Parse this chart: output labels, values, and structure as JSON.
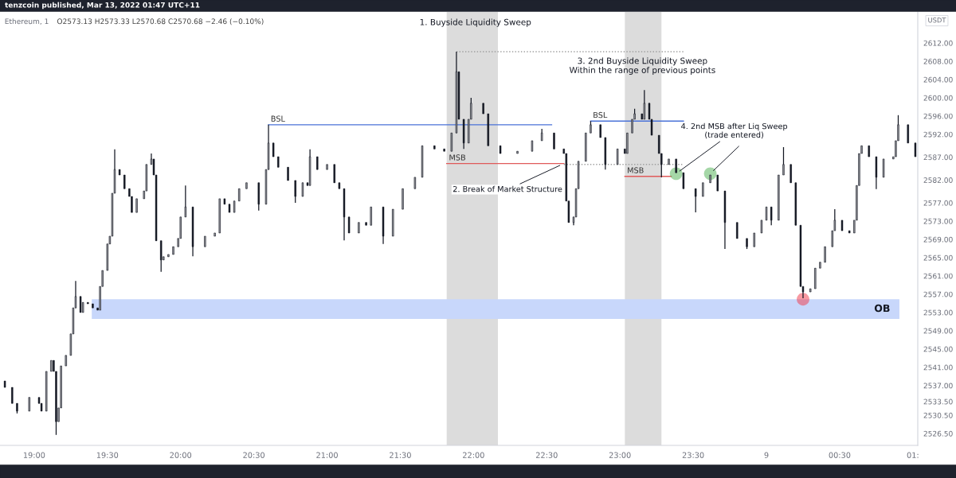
{
  "chart_data": {
    "type": "candlestick",
    "title": "Ethereum, 1",
    "subtitle": "O2573.13 H2573.33 L2570.68 C2570.68 −2.46 (−0.10%)",
    "annotations": [
      "tenzcoin published, Mar 13, 2022 01:47 UTC+11",
      "USDT",
      "1. Buyside Liquidity Sweep",
      {
        "text": "2. Break of Market Structure",
        "x": "2022-03-08T22:37",
        "y": 2585.6
      },
      "3. 2nd Buyside Liquidity Sweep\nWithin the range of previous points",
      {
        "text": "4. 2nd MSB after Liq Sweep\n(trade entered)",
        "x": "2022-03-08T23:23",
        "y": 2583.4
      }
    ],
    "x": [
      "2022-03-08T18:48",
      "2022-03-08T18:51",
      "2022-03-08T18:53",
      "2022-03-08T18:58",
      "2022-03-08T19:02",
      "2022-03-08T19:03",
      "2022-03-08T19:05",
      "2022-03-08T19:07",
      "2022-03-08T19:08",
      "2022-03-08T19:09",
      "2022-03-08T19:10",
      "2022-03-08T19:11",
      "2022-03-08T19:13",
      "2022-03-08T19:15",
      "2022-03-08T19:16",
      "2022-03-08T19:17",
      "2022-03-08T19:19",
      "2022-03-08T19:20",
      "2022-03-08T19:22",
      "2022-03-08T19:24",
      "2022-03-08T19:26",
      "2022-03-08T19:27",
      "2022-03-08T19:28",
      "2022-03-08T19:30",
      "2022-03-08T19:31",
      "2022-03-08T19:32",
      "2022-03-08T19:33",
      "2022-03-08T19:35",
      "2022-03-08T19:37",
      "2022-03-08T19:39",
      "2022-03-08T19:40",
      "2022-03-08T19:42",
      "2022-03-08T19:45",
      "2022-03-08T19:46",
      "2022-03-08T19:48",
      "2022-03-08T19:49",
      "2022-03-08T19:50",
      "2022-03-08T19:52",
      "2022-03-08T19:53",
      "2022-03-08T19:55",
      "2022-03-08T19:57",
      "2022-03-08T19:59",
      "2022-03-08T20:00",
      "2022-03-08T20:02",
      "2022-03-08T20:05",
      "2022-03-08T20:10",
      "2022-03-08T20:14",
      "2022-03-08T20:16",
      "2022-03-08T20:18",
      "2022-03-08T20:20",
      "2022-03-08T20:22",
      "2022-03-08T20:24",
      "2022-03-08T20:27",
      "2022-03-08T20:32",
      "2022-03-08T20:35",
      "2022-03-08T20:36",
      "2022-03-08T20:38",
      "2022-03-08T20:40",
      "2022-03-08T20:44",
      "2022-03-08T20:47",
      "2022-03-08T20:50",
      "2022-03-08T20:52",
      "2022-03-08T20:53",
      "2022-03-08T20:56",
      "2022-03-08T21:00",
      "2022-03-08T21:03",
      "2022-03-08T21:05",
      "2022-03-08T21:07",
      "2022-03-08T21:09",
      "2022-03-08T21:13",
      "2022-03-08T21:16",
      "2022-03-08T21:18",
      "2022-03-08T21:23",
      "2022-03-08T21:27",
      "2022-03-08T21:31",
      "2022-03-08T21:36",
      "2022-03-08T21:39",
      "2022-03-08T21:44",
      "2022-03-08T21:48",
      "2022-03-08T21:51",
      "2022-03-08T21:53",
      "2022-03-08T21:54",
      "2022-03-08T21:56",
      "2022-03-08T21:58",
      "2022-03-08T21:59",
      "2022-03-08T22:04",
      "2022-03-08T22:06",
      "2022-03-08T22:11",
      "2022-03-08T22:18",
      "2022-03-08T22:24",
      "2022-03-08T22:28",
      "2022-03-08T22:33",
      "2022-03-08T22:37",
      "2022-03-08T22:38",
      "2022-03-08T22:39",
      "2022-03-08T22:41",
      "2022-03-08T22:42",
      "2022-03-08T22:43",
      "2022-03-08T22:46",
      "2022-03-08T22:48",
      "2022-03-08T22:52",
      "2022-03-08T22:54",
      "2022-03-08T22:59",
      "2022-03-08T23:02",
      "2022-03-08T23:03",
      "2022-03-08T23:05",
      "2022-03-08T23:06",
      "2022-03-08T23:09",
      "2022-03-08T23:10",
      "2022-03-08T23:12",
      "2022-03-08T23:13",
      "2022-03-08T23:16",
      "2022-03-08T23:17",
      "2022-03-08T23:20",
      "2022-03-08T23:23",
      "2022-03-08T23:26",
      "2022-03-08T23:31",
      "2022-03-08T23:34",
      "2022-03-08T23:37",
      "2022-03-08T23:40",
      "2022-03-08T23:43",
      "2022-03-08T23:48",
      "2022-03-08T23:52",
      "2022-03-08T23:55",
      "2022-03-08T23:58",
      "2022-03-09T00:00",
      "2022-03-09T00:02",
      "2022-03-09T00:05",
      "2022-03-09T00:07",
      "2022-03-09T00:10",
      "2022-03-09T00:12",
      "2022-03-09T00:14",
      "2022-03-09T00:15",
      "2022-03-09T00:18",
      "2022-03-09T00:20",
      "2022-03-09T00:22",
      "2022-03-09T00:24",
      "2022-03-09T00:27",
      "2022-03-09T00:28",
      "2022-03-09T00:31",
      "2022-03-09T00:34",
      "2022-03-09T00:36",
      "2022-03-09T00:37",
      "2022-03-09T00:38",
      "2022-03-09T00:39",
      "2022-03-09T00:42",
      "2022-03-09T00:45",
      "2022-03-09T00:48",
      "2022-03-09T00:52",
      "2022-03-09T00:53",
      "2022-03-09T00:54",
      "2022-03-09T00:58",
      "2022-03-09T01:01"
    ],
    "ohlc": [
      [
        2538.0,
        2538.0,
        2536.6,
        2536.6
      ],
      [
        2536.6,
        2536.6,
        2533.1,
        2533.1
      ],
      [
        2533.1,
        2533.1,
        2530.9,
        2531.4
      ],
      [
        2531.4,
        2534.4,
        2531.4,
        2534.4
      ],
      [
        2534.4,
        2534.4,
        2533.1,
        2533.1
      ],
      [
        2533.1,
        2533.1,
        2531.4,
        2531.4
      ],
      [
        2531.4,
        2540.1,
        2531.4,
        2540.1
      ],
      [
        2540.1,
        2542.5,
        2540.1,
        2542.5
      ],
      [
        2542.5,
        2542.5,
        2540.1,
        2540.1
      ],
      [
        2540.1,
        2540.1,
        2526.2,
        2529.1
      ],
      [
        2529.1,
        2532.1,
        2529.1,
        2532.1
      ],
      [
        2532.1,
        2541.3,
        2532.1,
        2541.3
      ],
      [
        2541.3,
        2543.6,
        2541.3,
        2543.6
      ],
      [
        2543.6,
        2548.3,
        2543.6,
        2548.3
      ],
      [
        2548.3,
        2554.0,
        2548.3,
        2554.0
      ],
      [
        2554.0,
        2559.9,
        2554.0,
        2556.5
      ],
      [
        2556.5,
        2556.5,
        2553.0,
        2553.0
      ],
      [
        2553.0,
        2555.2,
        2553.0,
        2555.2
      ],
      [
        2555.2,
        2555.2,
        2554.9,
        2554.9
      ],
      [
        2554.9,
        2554.9,
        2554.0,
        2554.0
      ],
      [
        2554.0,
        2554.0,
        2553.5,
        2553.5
      ],
      [
        2553.5,
        2558.7,
        2553.5,
        2558.7
      ],
      [
        2558.7,
        2562.2,
        2558.7,
        2562.2
      ],
      [
        2562.2,
        2568.0,
        2562.2,
        2568.0
      ],
      [
        2568.0,
        2569.7,
        2568.0,
        2569.7
      ],
      [
        2569.7,
        2579.1,
        2569.7,
        2579.1
      ],
      [
        2579.1,
        2588.7,
        2579.1,
        2584.3
      ],
      [
        2584.3,
        2584.3,
        2583.1,
        2583.1
      ],
      [
        2583.1,
        2583.1,
        2580.1,
        2580.1
      ],
      [
        2580.1,
        2580.1,
        2578.4,
        2578.4
      ],
      [
        2578.4,
        2578.4,
        2574.9,
        2574.9
      ],
      [
        2574.9,
        2577.9,
        2574.9,
        2577.9
      ],
      [
        2577.9,
        2579.6,
        2577.9,
        2579.6
      ],
      [
        2579.6,
        2585.4,
        2579.6,
        2585.4
      ],
      [
        2585.4,
        2587.8,
        2585.4,
        2586.6
      ],
      [
        2586.6,
        2586.6,
        2583.1,
        2583.1
      ],
      [
        2583.1,
        2583.1,
        2568.7,
        2568.7
      ],
      [
        2568.7,
        2568.7,
        2561.9,
        2564.5
      ],
      [
        2564.5,
        2565.2,
        2564.5,
        2565.2
      ],
      [
        2565.2,
        2565.7,
        2565.2,
        2565.7
      ],
      [
        2565.7,
        2567.4,
        2565.7,
        2567.4
      ],
      [
        2567.4,
        2569.2,
        2567.4,
        2569.2
      ],
      [
        2569.2,
        2573.9,
        2569.2,
        2573.9
      ],
      [
        2573.9,
        2580.8,
        2573.9,
        2576.1
      ],
      [
        2576.1,
        2576.1,
        2565.3,
        2567.4
      ],
      [
        2567.4,
        2569.7,
        2567.4,
        2569.7
      ],
      [
        2569.7,
        2570.4,
        2569.7,
        2570.4
      ],
      [
        2570.4,
        2577.9,
        2570.4,
        2577.9
      ],
      [
        2577.9,
        2577.9,
        2576.7,
        2576.7
      ],
      [
        2576.7,
        2576.7,
        2574.9,
        2574.9
      ],
      [
        2574.9,
        2577.4,
        2574.9,
        2577.4
      ],
      [
        2577.4,
        2580.1,
        2577.4,
        2580.1
      ],
      [
        2580.1,
        2581.4,
        2580.1,
        2581.4
      ],
      [
        2581.4,
        2581.4,
        2575.3,
        2576.7
      ],
      [
        2576.7,
        2584.3,
        2576.7,
        2584.3
      ],
      [
        2584.3,
        2594.1,
        2584.3,
        2590.1
      ],
      [
        2590.1,
        2590.1,
        2587.1,
        2587.1
      ],
      [
        2587.1,
        2587.1,
        2584.8,
        2584.8
      ],
      [
        2584.8,
        2584.8,
        2581.9,
        2581.9
      ],
      [
        2581.9,
        2581.9,
        2577.0,
        2578.4
      ],
      [
        2578.4,
        2581.4,
        2578.4,
        2581.4
      ],
      [
        2581.4,
        2581.4,
        2580.8,
        2580.8
      ],
      [
        2580.8,
        2588.7,
        2580.8,
        2587.1
      ],
      [
        2587.1,
        2587.1,
        2584.3,
        2584.3
      ],
      [
        2584.3,
        2585.4,
        2584.3,
        2585.4
      ],
      [
        2585.4,
        2585.4,
        2581.4,
        2581.4
      ],
      [
        2581.4,
        2581.4,
        2580.1,
        2580.1
      ],
      [
        2580.1,
        2580.1,
        2568.8,
        2573.9
      ],
      [
        2573.9,
        2573.9,
        2570.4,
        2570.4
      ],
      [
        2570.4,
        2572.7,
        2570.4,
        2572.7
      ],
      [
        2572.7,
        2572.7,
        2572.1,
        2572.1
      ],
      [
        2572.1,
        2576.1,
        2572.1,
        2576.1
      ],
      [
        2576.1,
        2576.1,
        2568.0,
        2569.7
      ],
      [
        2569.7,
        2575.6,
        2569.7,
        2575.6
      ],
      [
        2575.6,
        2580.1,
        2575.6,
        2580.1
      ],
      [
        2580.1,
        2582.6,
        2580.1,
        2582.6
      ],
      [
        2582.6,
        2589.5,
        2582.6,
        2589.5
      ],
      [
        2589.5,
        2589.5,
        2588.8,
        2588.8
      ],
      [
        2588.8,
        2588.8,
        2588.3,
        2588.3
      ],
      [
        2588.3,
        2592.3,
        2588.3,
        2592.3
      ],
      [
        2592.3,
        2610.1,
        2592.3,
        2605.7
      ],
      [
        2605.7,
        2605.7,
        2595.3,
        2595.3
      ],
      [
        2595.3,
        2595.3,
        2588.8,
        2590.1
      ],
      [
        2590.1,
        2595.3,
        2590.1,
        2595.3
      ],
      [
        2595.3,
        2600.0,
        2595.3,
        2598.8
      ],
      [
        2598.8,
        2598.8,
        2596.5,
        2596.5
      ],
      [
        2596.5,
        2596.5,
        2589.5,
        2589.5
      ],
      [
        2589.5,
        2589.5,
        2587.8,
        2587.8
      ],
      [
        2587.8,
        2588.3,
        2587.8,
        2588.3
      ],
      [
        2588.3,
        2590.6,
        2588.3,
        2590.6
      ],
      [
        2590.6,
        2593.2,
        2590.6,
        2592.3
      ],
      [
        2592.3,
        2592.3,
        2588.8,
        2588.8
      ],
      [
        2588.8,
        2588.8,
        2587.8,
        2587.8
      ],
      [
        2587.8,
        2587.8,
        2577.4,
        2577.4
      ],
      [
        2577.4,
        2577.4,
        2572.7,
        2572.7
      ],
      [
        2572.7,
        2573.9,
        2572.1,
        2573.9
      ],
      [
        2573.9,
        2580.1,
        2573.9,
        2580.1
      ],
      [
        2580.1,
        2586.1,
        2580.1,
        2586.1
      ],
      [
        2586.1,
        2592.3,
        2586.1,
        2592.3
      ],
      [
        2592.3,
        2594.9,
        2592.3,
        2594.1
      ],
      [
        2594.1,
        2594.1,
        2591.3,
        2591.3
      ],
      [
        2591.3,
        2591.3,
        2584.3,
        2585.4
      ],
      [
        2585.4,
        2588.8,
        2585.4,
        2588.8
      ],
      [
        2588.8,
        2588.8,
        2587.8,
        2587.8
      ],
      [
        2587.8,
        2592.3,
        2587.8,
        2592.3
      ],
      [
        2592.3,
        2595.3,
        2592.3,
        2595.3
      ],
      [
        2595.3,
        2597.6,
        2595.3,
        2596.5
      ],
      [
        2596.5,
        2596.5,
        2595.3,
        2595.3
      ],
      [
        2595.3,
        2601.7,
        2595.3,
        2598.8
      ],
      [
        2598.8,
        2598.8,
        2595.3,
        2595.3
      ],
      [
        2595.3,
        2595.3,
        2591.8,
        2591.8
      ],
      [
        2591.8,
        2591.8,
        2587.8,
        2587.8
      ],
      [
        2587.8,
        2587.8,
        2582.6,
        2585.4
      ],
      [
        2585.4,
        2586.6,
        2585.4,
        2586.6
      ],
      [
        2586.6,
        2586.6,
        2583.6,
        2583.6
      ],
      [
        2583.6,
        2583.6,
        2580.1,
        2580.1
      ],
      [
        2580.1,
        2580.1,
        2574.9,
        2578.4
      ],
      [
        2578.4,
        2581.4,
        2578.4,
        2581.4
      ],
      [
        2581.4,
        2583.1,
        2581.4,
        2583.1
      ],
      [
        2583.1,
        2583.1,
        2579.6,
        2579.6
      ],
      [
        2579.6,
        2579.6,
        2566.9,
        2572.7
      ],
      [
        2572.7,
        2572.7,
        2569.2,
        2569.2
      ],
      [
        2569.2,
        2569.2,
        2566.9,
        2567.4
      ],
      [
        2567.4,
        2570.4,
        2567.4,
        2570.4
      ],
      [
        2570.4,
        2573.2,
        2570.4,
        2573.2
      ],
      [
        2573.2,
        2576.1,
        2573.2,
        2576.1
      ],
      [
        2576.1,
        2576.1,
        2572.1,
        2573.2
      ],
      [
        2573.2,
        2583.1,
        2573.2,
        2583.1
      ],
      [
        2583.1,
        2589.2,
        2583.1,
        2585.4
      ],
      [
        2585.4,
        2585.4,
        2581.4,
        2581.4
      ],
      [
        2581.4,
        2581.4,
        2572.1,
        2572.1
      ],
      [
        2572.1,
        2572.1,
        2558.7,
        2558.7
      ],
      [
        2558.7,
        2558.7,
        2556.1,
        2557.5
      ],
      [
        2557.5,
        2558.2,
        2557.5,
        2558.2
      ],
      [
        2558.2,
        2562.7,
        2558.2,
        2562.7
      ],
      [
        2562.7,
        2564.0,
        2562.7,
        2564.0
      ],
      [
        2564.0,
        2567.4,
        2564.0,
        2567.4
      ],
      [
        2567.4,
        2570.9,
        2567.4,
        2570.9
      ],
      [
        2570.9,
        2575.6,
        2570.9,
        2573.2
      ],
      [
        2573.2,
        2573.2,
        2570.9,
        2570.9
      ],
      [
        2570.9,
        2570.9,
        2570.4,
        2570.4
      ],
      [
        2570.4,
        2573.2,
        2570.4,
        2573.2
      ],
      [
        2573.2,
        2580.8,
        2573.2,
        2580.8
      ],
      [
        2580.8,
        2587.8,
        2580.8,
        2587.8
      ],
      [
        2587.8,
        2589.5,
        2587.8,
        2589.5
      ],
      [
        2589.5,
        2589.5,
        2587.1,
        2587.1
      ],
      [
        2587.1,
        2587.1,
        2580.0,
        2582.6
      ],
      [
        2582.6,
        2586.6,
        2582.6,
        2586.6
      ],
      [
        2586.6,
        2587.1,
        2586.6,
        2587.1
      ],
      [
        2587.1,
        2590.6,
        2587.1,
        2590.6
      ],
      [
        2590.6,
        2596.2,
        2590.6,
        2594.1
      ],
      [
        2594.1,
        2594.1,
        2590.1,
        2590.1
      ],
      [
        2590.1,
        2590.1,
        2587.1,
        2587.1
      ]
    ],
    "series": [
      {
        "name": "BSL",
        "type": "line",
        "color": "#4a72d8",
        "x": [
          "2022-03-08T20:36",
          "2022-03-08T22:32"
        ],
        "values": [
          2594.1,
          2594.1
        ]
      },
      {
        "name": "BSL",
        "type": "line",
        "color": "#4a72d8",
        "x": [
          "2022-03-08T22:48",
          "2022-03-08T23:26"
        ],
        "values": [
          2594.9,
          2594.9
        ]
      },
      {
        "name": "MSB",
        "type": "line",
        "color": "#e05a5a",
        "x": [
          "2022-03-08T21:49",
          "2022-03-08T22:37"
        ],
        "values": [
          2585.6,
          2585.6
        ]
      },
      {
        "name": "MSB",
        "type": "line",
        "color": "#e05a5a",
        "x": [
          "2022-03-08T23:02",
          "2022-03-08T23:21"
        ],
        "values": [
          2582.8,
          2582.8
        ]
      },
      {
        "type": "line",
        "color": "#9e9e9e",
        "line_style": "dotted",
        "x": [
          "2022-03-08T21:53",
          "2022-03-08T23:26"
        ],
        "values": [
          2610.1,
          2610.1
        ]
      },
      {
        "type": "line",
        "color": "#9e9e9e",
        "line_style": "dotted",
        "x": [
          "2022-03-08T22:37",
          "2022-03-08T23:26"
        ],
        "values": [
          2585.4,
          2585.4
        ]
      },
      {
        "type": "scatter",
        "color": "#4caf50",
        "marker": "circle",
        "x": [
          "2022-03-08T23:23",
          "2022-03-08T23:37"
        ],
        "values": [
          2583.4,
          2583.4
        ]
      },
      {
        "type": "scatter",
        "color": "#f23645",
        "marker": "circle",
        "x": [
          "2022-03-09T00:15"
        ],
        "values": [
          2555.9
        ]
      }
    ],
    "bands": [
      {
        "axis": "x",
        "from": "2022-03-08T21:49",
        "to": "2022-03-08T22:10",
        "color": "#dcdcdc"
      },
      {
        "axis": "x",
        "from": "2022-03-08T23:02",
        "to": "2022-03-08T23:17",
        "color": "#dcdcdc"
      },
      {
        "axis": "y",
        "from": 2551.6,
        "to": 2555.9,
        "label": "OB",
        "color": "#c8d7fb"
      }
    ],
    "xlim": [
      "2022-03-08T18:46",
      "2022-03-09T01:02"
    ],
    "xticks": [
      {
        "value": "2022-03-08T19:00",
        "label": "19:00"
      },
      {
        "value": "2022-03-08T19:30",
        "label": "19:30"
      },
      {
        "value": "2022-03-08T20:00",
        "label": "20:00"
      },
      {
        "value": "2022-03-08T20:30",
        "label": "20:30"
      },
      {
        "value": "2022-03-08T21:00",
        "label": "21:00"
      },
      {
        "value": "2022-03-08T21:30",
        "label": "21:30"
      },
      {
        "value": "2022-03-08T22:00",
        "label": "22:00"
      },
      {
        "value": "2022-03-08T22:30",
        "label": "22:30"
      },
      {
        "value": "2022-03-08T23:00",
        "label": "23:00"
      },
      {
        "value": "2022-03-08T23:30",
        "label": "23:30"
      },
      {
        "value": "2022-03-09T00:00",
        "label": "9"
      },
      {
        "value": "2022-03-09T00:30",
        "label": "00:30"
      },
      {
        "value": "2022-03-09T01:00",
        "label": "01:"
      }
    ],
    "ylim": [
      2523.9,
      2618.8
    ],
    "yticks": [
      {
        "value": 2612,
        "label": "2612.00"
      },
      {
        "value": 2608,
        "label": "2608.00"
      },
      {
        "value": 2604,
        "label": "2604.00"
      },
      {
        "value": 2600,
        "label": "2600.00"
      },
      {
        "value": 2596,
        "label": "2596.00"
      },
      {
        "value": 2592,
        "label": "2592.00"
      },
      {
        "value": 2587,
        "label": "2587.00"
      },
      {
        "value": 2582,
        "label": "2582.00"
      },
      {
        "value": 2577,
        "label": "2577.00"
      },
      {
        "value": 2573,
        "label": "2573.00"
      },
      {
        "value": 2569,
        "label": "2569.00"
      },
      {
        "value": 2565,
        "label": "2565.00"
      },
      {
        "value": 2561,
        "label": "2561.00"
      },
      {
        "value": 2557,
        "label": "2557.00"
      },
      {
        "value": 2553,
        "label": "2553.00"
      },
      {
        "value": 2549,
        "label": "2549.00"
      },
      {
        "value": 2545,
        "label": "2545.00"
      },
      {
        "value": 2541,
        "label": "2541.00"
      },
      {
        "value": 2537,
        "label": "2537.00"
      },
      {
        "value": 2533.5,
        "label": "2533.50"
      },
      {
        "value": 2530.5,
        "label": "2530.50"
      },
      {
        "value": 2526.5,
        "label": "2526.50"
      }
    ],
    "grid": false,
    "legend": false
  }
}
